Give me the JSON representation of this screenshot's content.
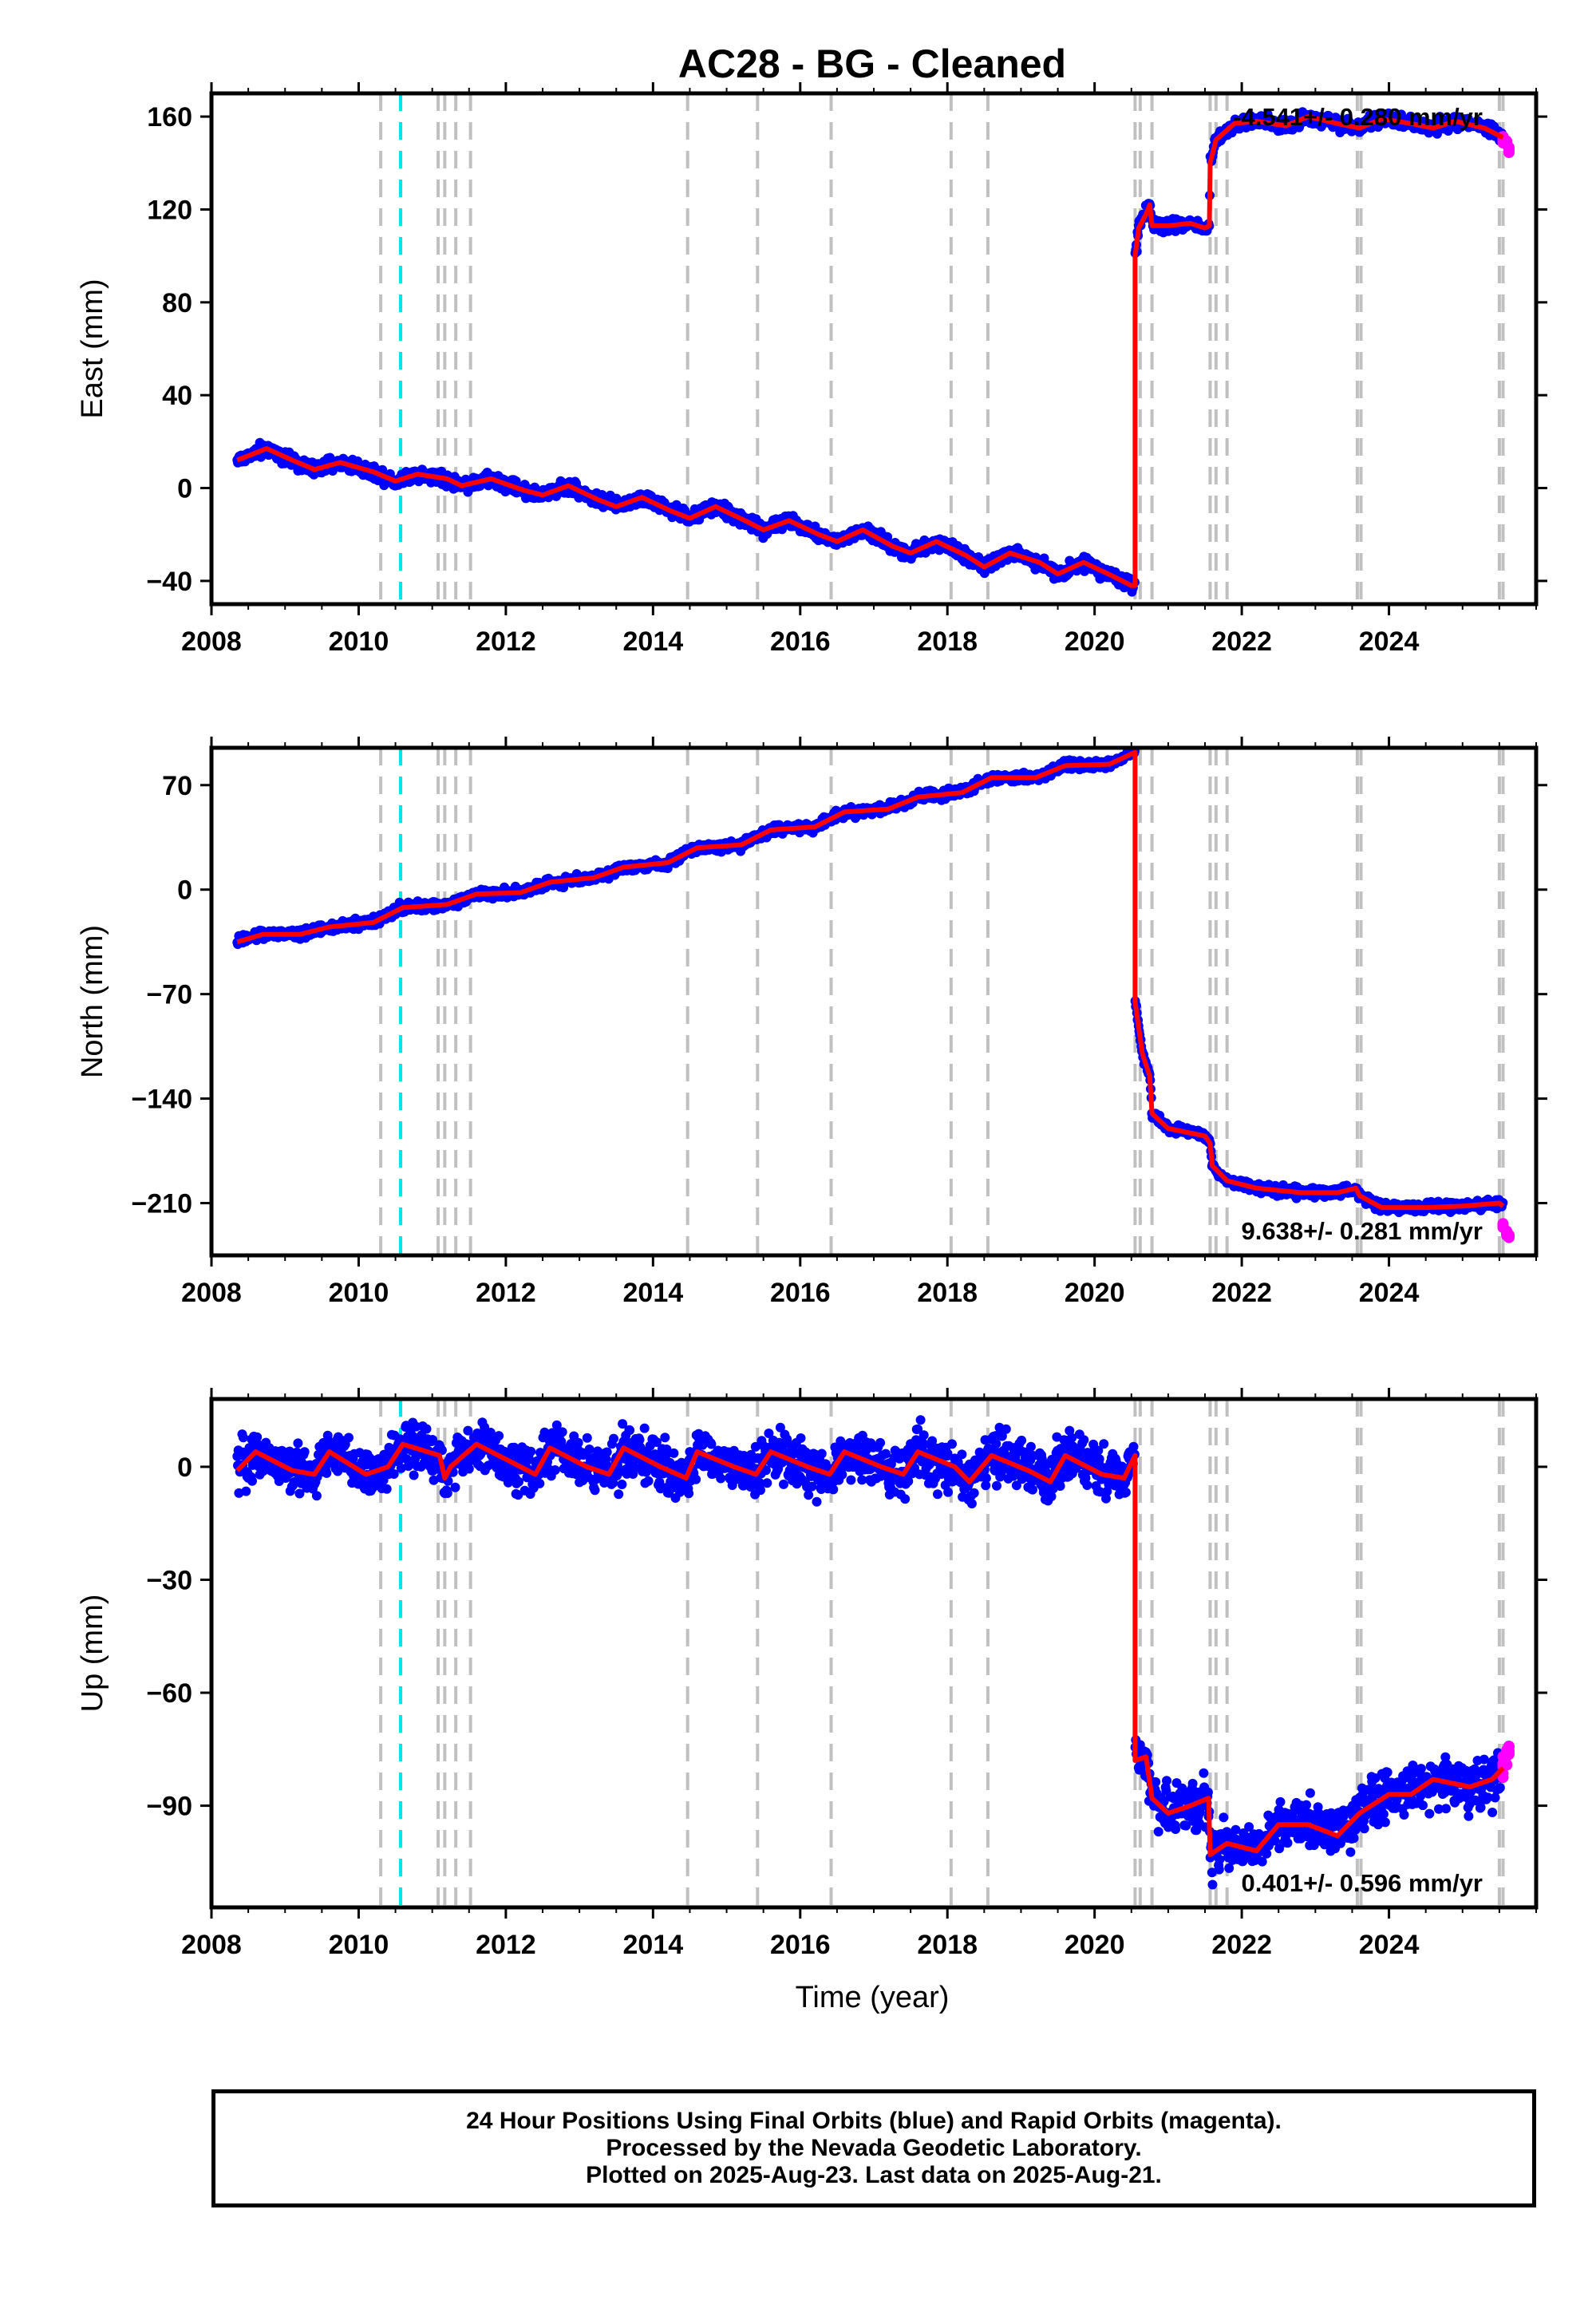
{
  "figure": {
    "title": "AC28  - BG - Cleaned",
    "xlabel": "Time (year)",
    "footer_lines": [
      "24 Hour Positions Using Final Orbits (blue) and Rapid Orbits (magenta).",
      "Processed by the Nevada Geodetic Laboratory.",
      "Plotted on 2025-Aug-23. Last data on 2025-Aug-21."
    ],
    "colors": {
      "final": "#0000ff",
      "rapid": "#ff00ff",
      "model": "#ff0000",
      "event_gray": "#c0c0c0",
      "event_cyan": "#00e5e5"
    }
  },
  "chart_data": [
    {
      "type": "scatter",
      "name": "east",
      "ylabel": "East (mm)",
      "annotation": "-4.541+/- 0.280 mm/yr",
      "xlim": [
        2008,
        2026
      ],
      "ylim": [
        -50,
        170
      ],
      "xticks": [
        2008,
        2010,
        2012,
        2014,
        2016,
        2018,
        2020,
        2022,
        2024
      ],
      "yticks": [
        -40,
        0,
        40,
        80,
        120,
        160
      ],
      "grid": false,
      "events_gray": [
        2010.3,
        2011.08,
        2011.17,
        2011.32,
        2011.52,
        2014.47,
        2015.42,
        2016.42,
        2018.05,
        2018.55,
        2020.55,
        2020.62,
        2020.78,
        2021.57,
        2021.65,
        2021.8,
        2023.57,
        2023.62,
        2025.5,
        2025.55
      ],
      "events_cyan": [
        2010.57
      ],
      "model": [
        [
          2008.35,
          12
        ],
        [
          2008.75,
          17
        ],
        [
          2009.1,
          12
        ],
        [
          2009.4,
          8
        ],
        [
          2009.75,
          11
        ],
        [
          2010.2,
          7
        ],
        [
          2010.5,
          3
        ],
        [
          2010.8,
          6
        ],
        [
          2011.2,
          4
        ],
        [
          2011.4,
          1
        ],
        [
          2011.8,
          4
        ],
        [
          2012.25,
          -1
        ],
        [
          2012.5,
          -3
        ],
        [
          2012.85,
          1
        ],
        [
          2013.25,
          -5
        ],
        [
          2013.5,
          -8
        ],
        [
          2013.85,
          -4
        ],
        [
          2014.25,
          -10
        ],
        [
          2014.5,
          -13
        ],
        [
          2014.85,
          -8
        ],
        [
          2015.25,
          -14
        ],
        [
          2015.5,
          -18
        ],
        [
          2015.85,
          -14
        ],
        [
          2016.25,
          -20
        ],
        [
          2016.5,
          -23
        ],
        [
          2016.85,
          -18
        ],
        [
          2017.25,
          -25
        ],
        [
          2017.5,
          -28
        ],
        [
          2017.85,
          -23
        ],
        [
          2018.25,
          -29
        ],
        [
          2018.5,
          -34
        ],
        [
          2018.85,
          -28
        ],
        [
          2019.25,
          -32
        ],
        [
          2019.5,
          -37
        ],
        [
          2019.85,
          -32
        ],
        [
          2020.25,
          -38
        ],
        [
          2020.5,
          -42
        ],
        [
          2020.55,
          -42
        ],
        [
          2020.55,
          100
        ],
        [
          2020.6,
          112
        ],
        [
          2020.7,
          118
        ],
        [
          2020.75,
          122
        ],
        [
          2020.78,
          113
        ],
        [
          2021.0,
          113
        ],
        [
          2021.3,
          114
        ],
        [
          2021.5,
          112
        ],
        [
          2021.56,
          113
        ],
        [
          2021.57,
          140
        ],
        [
          2021.65,
          150
        ],
        [
          2021.9,
          157
        ],
        [
          2022.2,
          158
        ],
        [
          2022.6,
          156
        ],
        [
          2022.9,
          160
        ],
        [
          2023.3,
          157
        ],
        [
          2023.6,
          155
        ],
        [
          2023.9,
          159
        ],
        [
          2024.3,
          157
        ],
        [
          2024.6,
          155
        ],
        [
          2024.9,
          158
        ],
        [
          2025.3,
          155
        ],
        [
          2025.55,
          151
        ]
      ],
      "rapid": [
        [
          2025.55,
          150
        ],
        [
          2025.6,
          148
        ],
        [
          2025.63,
          146
        ]
      ]
    },
    {
      "type": "scatter",
      "name": "north",
      "ylabel": "North (mm)",
      "annotation": "9.638+/- 0.281 mm/yr",
      "xlim": [
        2008,
        2026
      ],
      "ylim": [
        -245,
        95
      ],
      "xticks": [
        2008,
        2010,
        2012,
        2014,
        2016,
        2018,
        2020,
        2022,
        2024
      ],
      "yticks": [
        -210,
        -140,
        -70,
        0,
        70
      ],
      "grid": false,
      "events_gray": [
        2010.3,
        2011.08,
        2011.17,
        2011.32,
        2011.52,
        2014.47,
        2015.42,
        2016.42,
        2018.05,
        2018.55,
        2020.55,
        2020.62,
        2020.78,
        2021.57,
        2021.65,
        2021.8,
        2023.57,
        2023.62,
        2025.5,
        2025.55
      ],
      "events_cyan": [
        2010.57
      ],
      "model": [
        [
          2008.35,
          -35
        ],
        [
          2008.7,
          -30
        ],
        [
          2009.2,
          -30
        ],
        [
          2009.6,
          -25
        ],
        [
          2010.2,
          -22
        ],
        [
          2010.6,
          -12
        ],
        [
          2011.2,
          -10
        ],
        [
          2011.6,
          -3
        ],
        [
          2012.2,
          -2
        ],
        [
          2012.6,
          5
        ],
        [
          2013.2,
          8
        ],
        [
          2013.6,
          15
        ],
        [
          2014.2,
          18
        ],
        [
          2014.6,
          28
        ],
        [
          2015.2,
          30
        ],
        [
          2015.6,
          40
        ],
        [
          2016.2,
          42
        ],
        [
          2016.6,
          52
        ],
        [
          2017.2,
          54
        ],
        [
          2017.6,
          62
        ],
        [
          2018.2,
          65
        ],
        [
          2018.6,
          75
        ],
        [
          2019.2,
          75
        ],
        [
          2019.6,
          83
        ],
        [
          2020.2,
          84
        ],
        [
          2020.55,
          92
        ],
        [
          2020.55,
          -75
        ],
        [
          2020.65,
          -110
        ],
        [
          2020.75,
          -125
        ],
        [
          2020.78,
          -150
        ],
        [
          2021.0,
          -160
        ],
        [
          2021.5,
          -165
        ],
        [
          2021.57,
          -170
        ],
        [
          2021.6,
          -185
        ],
        [
          2021.8,
          -195
        ],
        [
          2022.2,
          -200
        ],
        [
          2022.8,
          -203
        ],
        [
          2023.3,
          -203
        ],
        [
          2023.55,
          -200
        ],
        [
          2023.6,
          -205
        ],
        [
          2023.9,
          -213
        ],
        [
          2024.5,
          -213
        ],
        [
          2025.0,
          -212
        ],
        [
          2025.5,
          -210
        ],
        [
          2025.55,
          -212
        ]
      ],
      "rapid": [
        [
          2025.55,
          -225
        ],
        [
          2025.6,
          -230
        ],
        [
          2025.63,
          -232
        ]
      ]
    },
    {
      "type": "scatter",
      "name": "up",
      "ylabel": "Up (mm)",
      "annotation": "0.401+/- 0.596 mm/yr",
      "xlim": [
        2008,
        2026
      ],
      "ylim": [
        -117,
        18
      ],
      "xticks": [
        2008,
        2010,
        2012,
        2014,
        2016,
        2018,
        2020,
        2022,
        2024
      ],
      "yticks": [
        -90,
        -60,
        -30,
        0
      ],
      "grid": false,
      "events_gray": [
        2010.3,
        2011.08,
        2011.17,
        2011.32,
        2011.52,
        2014.47,
        2015.42,
        2016.42,
        2018.05,
        2018.55,
        2020.55,
        2020.62,
        2020.78,
        2021.57,
        2021.65,
        2021.8,
        2023.57,
        2023.62,
        2025.5,
        2025.55
      ],
      "events_cyan": [
        2010.57
      ],
      "model": [
        [
          2008.35,
          -1
        ],
        [
          2008.6,
          4
        ],
        [
          2009.1,
          -1
        ],
        [
          2009.4,
          -2
        ],
        [
          2009.6,
          4
        ],
        [
          2010.1,
          -2
        ],
        [
          2010.4,
          0
        ],
        [
          2010.6,
          6
        ],
        [
          2011.1,
          3
        ],
        [
          2011.17,
          -3
        ],
        [
          2011.25,
          0
        ],
        [
          2011.6,
          6
        ],
        [
          2012.1,
          1
        ],
        [
          2012.4,
          -2
        ],
        [
          2012.6,
          5
        ],
        [
          2013.1,
          0
        ],
        [
          2013.4,
          -2
        ],
        [
          2013.6,
          5
        ],
        [
          2014.1,
          0
        ],
        [
          2014.45,
          -3
        ],
        [
          2014.6,
          4
        ],
        [
          2015.1,
          0
        ],
        [
          2015.4,
          -2
        ],
        [
          2015.6,
          4
        ],
        [
          2016.1,
          0
        ],
        [
          2016.4,
          -2
        ],
        [
          2016.6,
          4
        ],
        [
          2017.1,
          0
        ],
        [
          2017.4,
          -2
        ],
        [
          2017.6,
          4
        ],
        [
          2018.1,
          0
        ],
        [
          2018.3,
          -4
        ],
        [
          2018.6,
          3
        ],
        [
          2019.1,
          -1
        ],
        [
          2019.4,
          -4
        ],
        [
          2019.6,
          3
        ],
        [
          2020.1,
          -2
        ],
        [
          2020.4,
          -3
        ],
        [
          2020.55,
          3
        ],
        [
          2020.55,
          -78
        ],
        [
          2020.7,
          -77
        ],
        [
          2020.78,
          -88
        ],
        [
          2021.0,
          -92
        ],
        [
          2021.3,
          -90
        ],
        [
          2021.55,
          -88
        ],
        [
          2021.57,
          -103
        ],
        [
          2021.8,
          -100
        ],
        [
          2022.2,
          -102
        ],
        [
          2022.5,
          -95
        ],
        [
          2022.9,
          -95
        ],
        [
          2023.3,
          -98
        ],
        [
          2023.6,
          -92
        ],
        [
          2024.0,
          -87
        ],
        [
          2024.3,
          -87
        ],
        [
          2024.6,
          -83
        ],
        [
          2025.1,
          -85
        ],
        [
          2025.4,
          -83
        ],
        [
          2025.55,
          -80
        ]
      ],
      "rapid": [
        [
          2025.55,
          -80
        ],
        [
          2025.6,
          -77
        ],
        [
          2025.63,
          -75
        ]
      ]
    }
  ]
}
